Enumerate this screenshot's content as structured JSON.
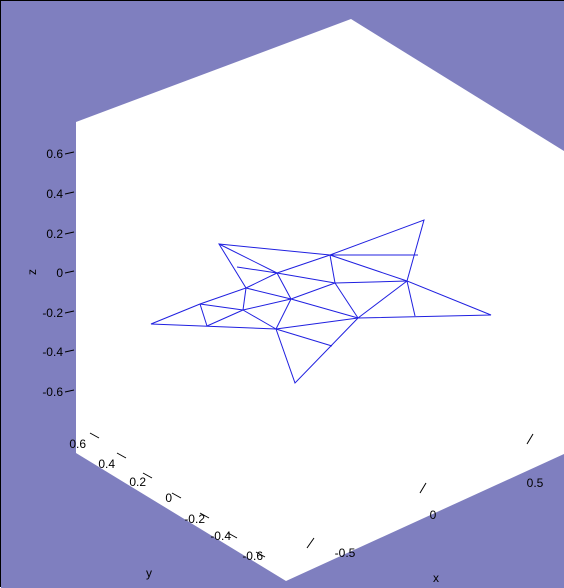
{
  "figure": {
    "background_color": "#7f7fbf",
    "axes_color": "#ffffff",
    "mesh_color": "#2020e0"
  },
  "chart_data": {
    "type": "trimesh",
    "xlabel": "x",
    "ylabel": "y",
    "zlabel": "z",
    "z_ticks": [
      "0.6",
      "0.4",
      "0.2",
      "0",
      "-0.2",
      "-0.4",
      "-0.6"
    ],
    "y_ticks": [
      "0.6",
      "0.4",
      "0.2",
      "0",
      "-0.2",
      "-0.4",
      "-0.6"
    ],
    "x_ticks": [
      "-0.5",
      "0",
      "0.5"
    ],
    "grid": false
  }
}
